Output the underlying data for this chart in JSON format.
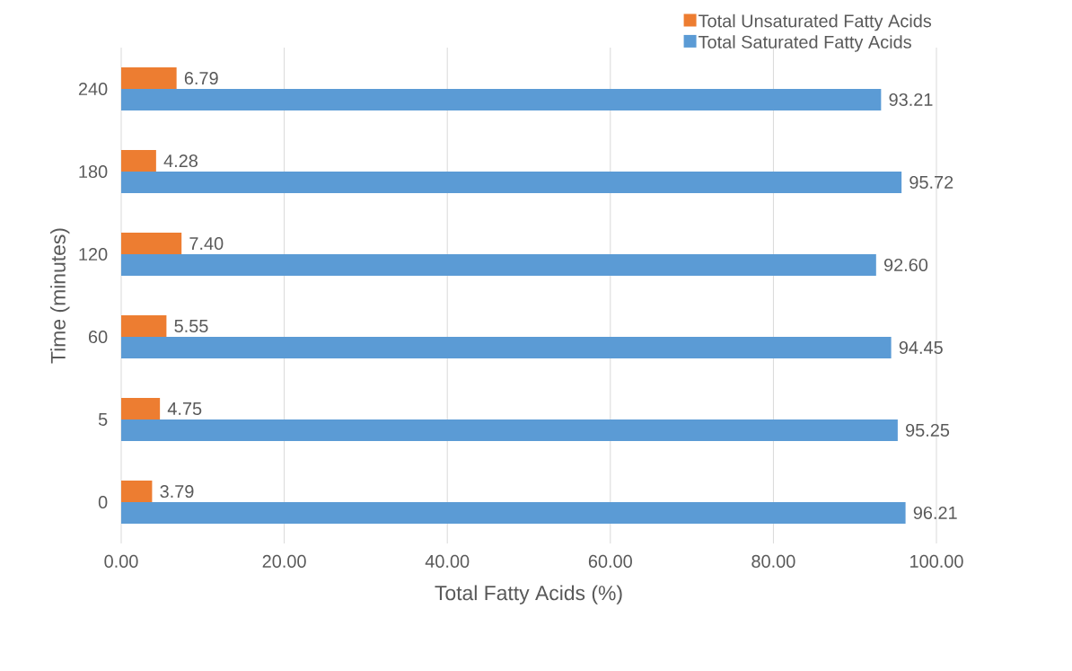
{
  "chart_data": {
    "type": "bar",
    "orientation": "horizontal",
    "xlabel": "Total Fatty Acids (%)",
    "ylabel": "Time (minutes)",
    "categories": [
      "240",
      "180",
      "120",
      "60",
      "5",
      "0"
    ],
    "series": [
      {
        "name": "Total Unsaturated Fatty Acids",
        "color": "#ed7d31",
        "values": [
          6.79,
          4.28,
          7.4,
          5.55,
          4.75,
          3.79
        ],
        "value_labels": [
          "6.79",
          "4.28",
          "7.40",
          "5.55",
          "4.75",
          "3.79"
        ]
      },
      {
        "name": "Total Saturated Fatty Acids",
        "color": "#5b9bd5",
        "values": [
          93.21,
          95.72,
          92.6,
          94.45,
          95.25,
          96.21
        ],
        "value_labels": [
          "93.21",
          "95.72",
          "92.60",
          "94.45",
          "95.25",
          "96.21"
        ]
      }
    ],
    "xlim": [
      0,
      100
    ],
    "xticks": [
      {
        "value": 0,
        "label": "0.00"
      },
      {
        "value": 20,
        "label": "20.00"
      },
      {
        "value": 40,
        "label": "40.00"
      },
      {
        "value": 60,
        "label": "60.00"
      },
      {
        "value": 80,
        "label": "80.00"
      },
      {
        "value": 100,
        "label": "100.00"
      }
    ],
    "grid": "x",
    "legend": "top right"
  }
}
